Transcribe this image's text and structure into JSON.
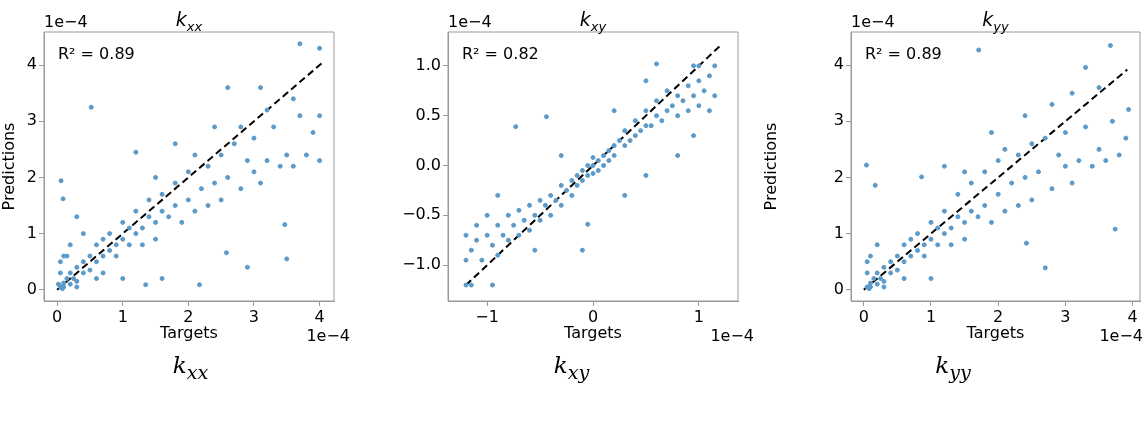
{
  "chart_data": [
    {
      "type": "scatter",
      "title": "k$_{xx}$",
      "xlabel": "Targets",
      "ylabel": "Predictions",
      "marker": "circle",
      "xlim": [
        -0.2,
        4.22
      ],
      "ylim": [
        -0.2,
        4.59
      ],
      "xticks": [
        0,
        1,
        2,
        3,
        4
      ],
      "yticks": [
        0,
        1,
        2,
        3,
        4
      ],
      "annotations": [
        "R² = 0.89",
        "1e−4",
        "1e−4",
        "k$_{xx}$"
      ],
      "series": [
        {
          "color": "#5b9ac9",
          "x": [
            0.05,
            0.1,
            0.1,
            0.15,
            0.2,
            0.05,
            0.05,
            0.1,
            0.2,
            0.25,
            0.3,
            0.3,
            0.4,
            0.4,
            0.5,
            0.5,
            0.6,
            0.6,
            0.7,
            0.7,
            0.8,
            0.8,
            0.9,
            0.9,
            1.0,
            1.0,
            1.1,
            1.1,
            1.2,
            1.2,
            1.3,
            1.3,
            1.4,
            1.4,
            1.5,
            1.5,
            1.6,
            1.6,
            1.7,
            1.8,
            1.8,
            1.9,
            2.0,
            2.0,
            2.1,
            2.2,
            2.3,
            2.3,
            2.4,
            2.5,
            2.5,
            2.6,
            2.7,
            2.8,
            2.9,
            3.0,
            3.0,
            3.1,
            3.2,
            3.3,
            3.4,
            3.5,
            3.6,
            3.7,
            3.8,
            3.9,
            4.0,
            4.0,
            4.0,
            3.7,
            3.1,
            2.6,
            0.52,
            0.06,
            0.09,
            0.3,
            0.4,
            0.7,
            1.35,
            1.6,
            2.17,
            2.58,
            3.47,
            3.5,
            2.9,
            1.0,
            0.2,
            0.15,
            1.2,
            1.8,
            2.4,
            3.2,
            3.6,
            0.3,
            0.08,
            0.02,
            0.6,
            1.5,
            2.1,
            2.8
          ],
          "values": [
            0.05,
            0.12,
            0.05,
            0.2,
            0.1,
            0.3,
            0.5,
            0.6,
            0.3,
            0.2,
            0.4,
            0.15,
            0.5,
            0.3,
            0.6,
            0.35,
            0.5,
            0.8,
            0.6,
            0.9,
            0.7,
            1.0,
            0.8,
            0.6,
            0.9,
            1.2,
            0.8,
            1.1,
            1.0,
            1.4,
            1.1,
            0.8,
            1.3,
            1.6,
            1.2,
            0.9,
            1.4,
            1.7,
            1.3,
            1.5,
            1.9,
            1.2,
            1.6,
            2.1,
            1.4,
            1.8,
            2.2,
            1.5,
            1.9,
            2.4,
            1.6,
            2.0,
            2.6,
            1.8,
            2.3,
            2.1,
            2.7,
            1.9,
            2.3,
            2.9,
            2.2,
            2.4,
            2.2,
            3.1,
            2.4,
            2.8,
            2.3,
            3.1,
            4.3,
            4.38,
            3.6,
            3.6,
            3.25,
            1.94,
            1.62,
            1.3,
            1.0,
            0.3,
            0.09,
            0.2,
            0.09,
            0.66,
            1.16,
            0.55,
            0.4,
            0.2,
            0.8,
            0.6,
            2.45,
            2.6,
            2.9,
            3.2,
            3.4,
            0.05,
            0.02,
            0.1,
            0.2,
            2.0,
            2.4,
            2.9
          ]
        },
        {
          "type": "line",
          "color": "#000000",
          "line_style": "dashed",
          "marker": "none",
          "x": [
            0,
            4.03
          ],
          "values": [
            0,
            4.03
          ]
        }
      ]
    },
    {
      "type": "scatter",
      "title": "k$_{xy}$",
      "xlabel": "Targets",
      "marker": "circle",
      "xlim": [
        -1.37,
        1.37
      ],
      "ylim": [
        -1.36,
        1.34
      ],
      "xticks": [
        {
          "value": -1,
          "label": "−1"
        },
        0,
        1
      ],
      "yticks": [
        {
          "value": -1,
          "label": "−1.0"
        },
        {
          "value": -0.5,
          "label": "−0.5"
        },
        {
          "value": 0,
          "label": "0.0"
        },
        0.5,
        {
          "value": 1,
          "label": "1.0"
        }
      ],
      "annotations": [
        "R² = 0.82",
        "1e−4",
        "1e−4",
        "k$_{xy}$"
      ],
      "series": [
        {
          "color": "#5b9ac9",
          "x": [
            -1.2,
            -1.15,
            -1.1,
            -1.1,
            -1.05,
            -1.0,
            -1.0,
            -0.95,
            -0.9,
            -0.9,
            -0.85,
            -0.8,
            -0.8,
            -0.75,
            -0.7,
            -0.7,
            -0.65,
            -0.6,
            -0.6,
            -0.55,
            -0.5,
            -0.5,
            -0.45,
            -0.4,
            -0.4,
            -0.35,
            -0.3,
            -0.3,
            -0.25,
            -0.2,
            -0.2,
            -0.15,
            -0.15,
            -0.1,
            -0.1,
            -0.05,
            -0.05,
            0,
            0,
            0,
            0.05,
            0.05,
            0.1,
            0.1,
            0.15,
            0.15,
            0.2,
            0.2,
            0.25,
            0.3,
            0.3,
            0.35,
            0.4,
            0.4,
            0.45,
            0.5,
            0.5,
            0.55,
            0.6,
            0.6,
            0.65,
            0.7,
            0.7,
            0.75,
            0.8,
            0.8,
            0.85,
            0.9,
            0.9,
            0.95,
            1.0,
            1.0,
            1.05,
            1.1,
            1.1,
            1.15,
            1.15,
            1.0,
            0.95,
            0.6,
            0.5,
            -0.73,
            -0.44,
            0.2,
            -0.05,
            -0.1,
            0.3,
            0.5,
            0.8,
            0.95,
            -1.2,
            -1.15,
            -0.95,
            -0.3,
            -0.55,
            -0.9,
            -1.2
          ],
          "values": [
            -0.7,
            -0.85,
            -0.75,
            -0.6,
            -0.95,
            -0.7,
            -0.5,
            -0.8,
            -0.6,
            -0.9,
            -0.7,
            -0.5,
            -0.75,
            -0.6,
            -0.45,
            -0.7,
            -0.55,
            -0.4,
            -0.65,
            -0.5,
            -0.35,
            -0.55,
            -0.4,
            -0.3,
            -0.5,
            -0.35,
            -0.2,
            -0.4,
            -0.25,
            -0.15,
            -0.3,
            -0.1,
            -0.2,
            -0.05,
            -0.15,
            0.0,
            -0.1,
            0,
            0.08,
            -0.08,
            0.05,
            -0.05,
            0.1,
            0.0,
            0.15,
            0.05,
            0.2,
            0.1,
            0.25,
            0.2,
            0.35,
            0.25,
            0.3,
            0.45,
            0.35,
            0.4,
            0.55,
            0.4,
            0.5,
            0.65,
            0.45,
            0.55,
            0.75,
            0.6,
            0.7,
            0.5,
            0.65,
            0.8,
            0.55,
            0.7,
            0.85,
            0.6,
            0.75,
            0.9,
            0.55,
            0.7,
            1.0,
            1.0,
            1.0,
            1.02,
            0.85,
            0.39,
            0.49,
            0.55,
            -0.59,
            -0.85,
            -0.3,
            -0.1,
            0.1,
            0.3,
            -1.2,
            -1.2,
            -1.2,
            0.1,
            -0.85,
            -0.3,
            -0.95
          ]
        },
        {
          "type": "line",
          "color": "#000000",
          "line_style": "dashed",
          "marker": "none",
          "x": [
            -1.2,
            1.22
          ],
          "values": [
            -1.2,
            1.22
          ]
        }
      ]
    },
    {
      "type": "scatter",
      "title": "k$_{yy}$",
      "xlabel": "Targets",
      "ylabel": "Predictions",
      "marker": "circle",
      "xlim": [
        -0.19,
        4.11
      ],
      "ylim": [
        -0.2,
        4.59
      ],
      "xticks": [
        0,
        1,
        2,
        3,
        4
      ],
      "yticks": [
        0,
        1,
        2,
        3,
        4
      ],
      "annotations": [
        "R² = 0.89",
        "1e−4",
        "1e−4",
        "k$_{yy}$"
      ],
      "series": [
        {
          "color": "#5b9ac9",
          "x": [
            0.05,
            0.1,
            0.1,
            0.15,
            0.2,
            0.05,
            0.05,
            0.1,
            0.2,
            0.25,
            0.3,
            0.3,
            0.4,
            0.4,
            0.5,
            0.5,
            0.6,
            0.6,
            0.7,
            0.7,
            0.8,
            0.8,
            0.9,
            0.9,
            1.0,
            1.0,
            1.1,
            1.1,
            1.2,
            1.2,
            1.3,
            1.3,
            1.4,
            1.4,
            1.5,
            1.5,
            1.6,
            1.6,
            1.7,
            1.8,
            1.8,
            1.9,
            2.0,
            2.0,
            2.1,
            2.2,
            2.3,
            2.3,
            2.4,
            2.5,
            2.5,
            2.6,
            2.7,
            2.8,
            2.9,
            3.0,
            3.0,
            3.1,
            3.2,
            3.3,
            3.4,
            3.5,
            3.6,
            3.7,
            3.8,
            3.9,
            1.71,
            3.67,
            0.04,
            0.17,
            0.86,
            2.7,
            2.42,
            3.74,
            3.3,
            3.94,
            0.3,
            0.08,
            0.6,
            1.5,
            2.1,
            2.8,
            1.0,
            0.2,
            1.2,
            1.9,
            2.4,
            3.1,
            3.5
          ],
          "values": [
            0.05,
            0.12,
            0.05,
            0.2,
            0.1,
            0.3,
            0.5,
            0.6,
            0.3,
            0.2,
            0.4,
            0.15,
            0.5,
            0.3,
            0.6,
            0.35,
            0.5,
            0.8,
            0.6,
            0.9,
            0.7,
            1.0,
            0.8,
            0.6,
            0.9,
            1.2,
            0.8,
            1.1,
            1.0,
            1.4,
            1.1,
            0.8,
            1.3,
            1.7,
            1.2,
            0.9,
            1.4,
            1.9,
            1.3,
            1.5,
            2.1,
            1.2,
            1.7,
            2.3,
            1.4,
            1.9,
            2.4,
            1.5,
            2.0,
            2.6,
            1.6,
            2.1,
            2.7,
            1.8,
            2.4,
            2.2,
            2.8,
            1.9,
            2.3,
            2.9,
            2.2,
            2.5,
            2.3,
            3.0,
            2.4,
            2.7,
            4.27,
            4.35,
            2.22,
            1.86,
            2.01,
            0.39,
            0.83,
            1.08,
            3.96,
            3.21,
            0.05,
            0.02,
            0.2,
            2.1,
            2.5,
            3.3,
            0.2,
            0.8,
            2.2,
            2.8,
            3.1,
            3.5,
            3.6
          ]
        },
        {
          "type": "line",
          "color": "#000000",
          "line_style": "dashed",
          "marker": "none",
          "x": [
            0,
            3.92
          ],
          "values": [
            0,
            3.92
          ]
        }
      ]
    }
  ]
}
